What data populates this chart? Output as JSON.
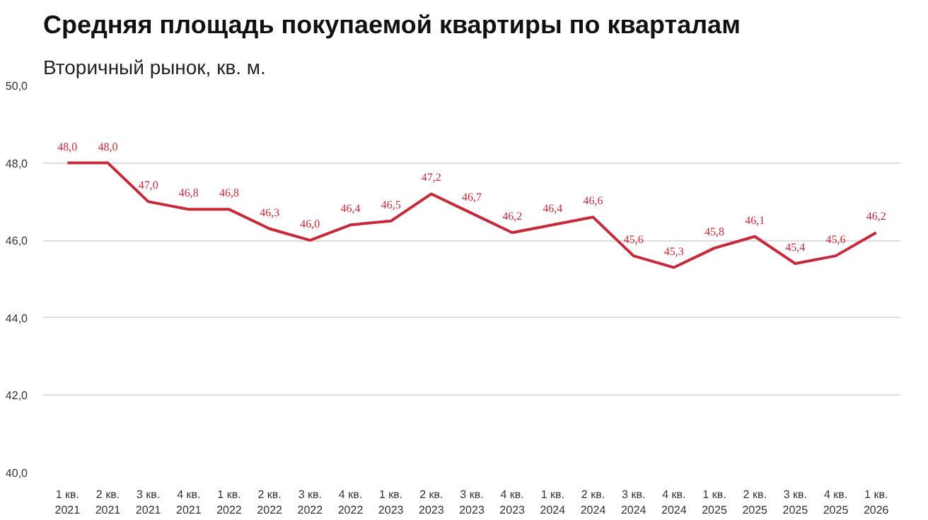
{
  "chart_data": {
    "type": "line",
    "title": "Средняя площадь покупаемой квартиры по кварталам",
    "subtitle": "Вторичный рынок, кв. м.",
    "categories": [
      "1 кв. 2021",
      "2 кв. 2021",
      "3 кв. 2021",
      "4 кв. 2021",
      "1 кв. 2022",
      "2 кв. 2022",
      "3 кв. 2022",
      "4 кв. 2022",
      "1 кв. 2023",
      "2 кв. 2023",
      "3 кв. 2023",
      "4 кв. 2023",
      "1 кв. 2024",
      "2 кв. 2024",
      "3 кв. 2024",
      "4 кв. 2024",
      "1 кв. 2025",
      "2 кв. 2025",
      "3 кв. 2025",
      "4 кв. 2025",
      "1 кв. 2026"
    ],
    "series": [
      {
        "color": "#c62b3b",
        "values": [
          48.0,
          48.0,
          47.0,
          46.8,
          46.8,
          46.3,
          46.0,
          46.4,
          46.5,
          47.2,
          46.7,
          46.2,
          46.4,
          46.6,
          45.6,
          45.3,
          45.8,
          46.1,
          45.4,
          45.6,
          46.2
        ],
        "value_labels": [
          "48,0",
          "48,0",
          "47,0",
          "46,8",
          "46,8",
          "46,3",
          "46,0",
          "46,4",
          "46,5",
          "47,2",
          "46,7",
          "46,2",
          "46,4",
          "46,6",
          "45,6",
          "45,3",
          "45,8",
          "46,1",
          "45,4",
          "45,6",
          "46,2"
        ]
      }
    ],
    "ylim": [
      40,
      50
    ],
    "yticks": [
      {
        "value": 40,
        "label": "40,0"
      },
      {
        "value": 42,
        "label": "42,0"
      },
      {
        "value": 44,
        "label": "44,0"
      },
      {
        "value": 46,
        "label": "46,0"
      },
      {
        "value": 48,
        "label": "48,0"
      },
      {
        "value": 50,
        "label": "50,0"
      }
    ],
    "grid": "y",
    "marker": "none",
    "line_style": "solid"
  }
}
